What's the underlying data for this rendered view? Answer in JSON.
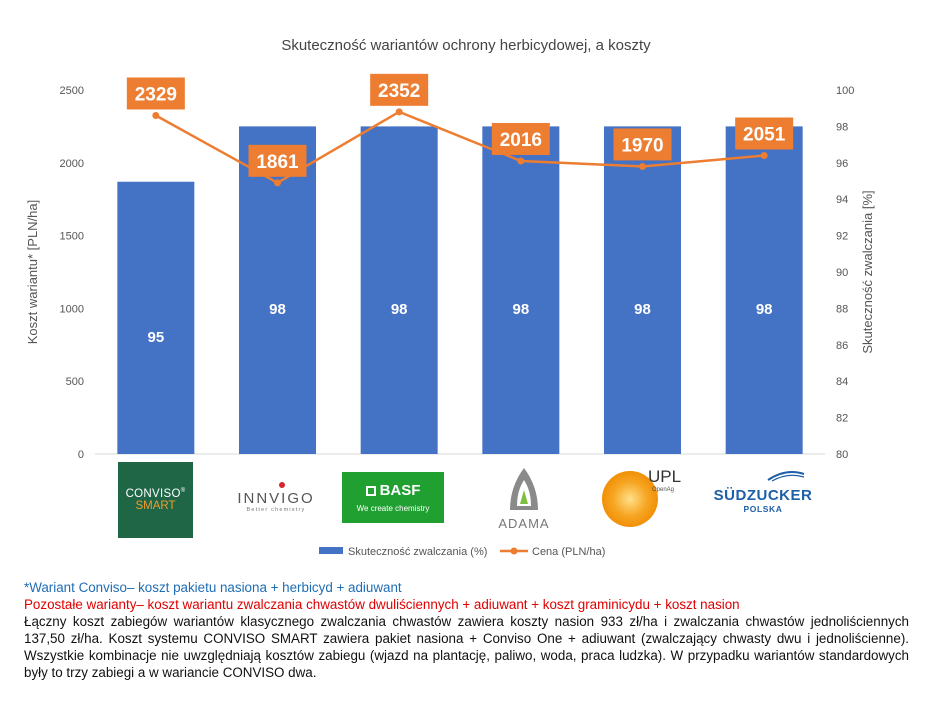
{
  "chart_data": {
    "type": "bar",
    "title": "Skuteczność wariantów ochrony herbicydowej, a koszty",
    "ylabel": "Koszt wariantu* [PLN/ha]",
    "y2label": "Skuteczność zwalczania [%]",
    "ylim": [
      0,
      2500
    ],
    "y2lim": [
      80,
      100
    ],
    "yticks": [
      "0",
      "500",
      "1000",
      "1500",
      "2000",
      "2500"
    ],
    "y2ticks": [
      "80",
      "82",
      "84",
      "86",
      "88",
      "90",
      "92",
      "94",
      "96",
      "98",
      "100"
    ],
    "categories": [
      "Conviso Smart",
      "Innvigo",
      "BASF",
      "ADAMA",
      "UPL",
      "Südzucker Polska"
    ],
    "bar_values": [
      1870,
      2250,
      2250,
      2250,
      2250,
      2250
    ],
    "bar_labels": [
      "95",
      "98",
      "98",
      "98",
      "98",
      "98"
    ],
    "line_values": [
      98.6,
      94.9,
      98.8,
      96.1,
      95.8,
      96.4
    ],
    "line_labels": [
      "2329",
      "1861",
      "2352",
      "2016",
      "1970",
      "2051"
    ],
    "series": [
      {
        "name": "Skuteczność zwalczania (%)",
        "color": "#4472c4"
      },
      {
        "name": "Cena (PLN/ha)",
        "color": "#ed7d31"
      }
    ],
    "grid": false,
    "legend": "bottom"
  },
  "logos": {
    "conviso": {
      "line1": "CONVISO",
      "sup": "®",
      "line2": "SMART"
    },
    "innvigo": {
      "text": "INNVIGO",
      "sub": "Better chemistry"
    },
    "basf": {
      "text": "BASF",
      "sub": "We create chemistry"
    },
    "adama": {
      "text": "ADAMA"
    },
    "upl": {
      "text": "UPL",
      "sub": "OpenAg"
    },
    "sudzucker": {
      "text": "SÜDZUCKER",
      "sub": "POLSKA"
    }
  },
  "notes": {
    "line1": "*Wariant Conviso– koszt pakietu nasiona + herbicyd + adiuwant",
    "line2": "Pozostałe warianty– koszt wariantu zwalczania chwastów dwuliściennych + adiuwant + koszt graminicydu + koszt nasion",
    "body": "Łączny koszt zabiegów wariantów klasycznego zwalczania chwastów zawiera koszty nasion 933 zł/ha i zwalczania chwastów jednoliściennych 137,50 zł/ha. Koszt systemu CONVISO SMART zawiera pakiet nasiona + Conviso One + adiuwant (zwalczający chwasty dwu i jednoliścienne). Wszystkie kombinacje nie uwzględniają kosztów zabiegu (wjazd na plantację, paliwo, woda, praca ludzka). W przypadku wariantów standardowych były to trzy zabiegi a w wariancie CONVISO dwa."
  }
}
